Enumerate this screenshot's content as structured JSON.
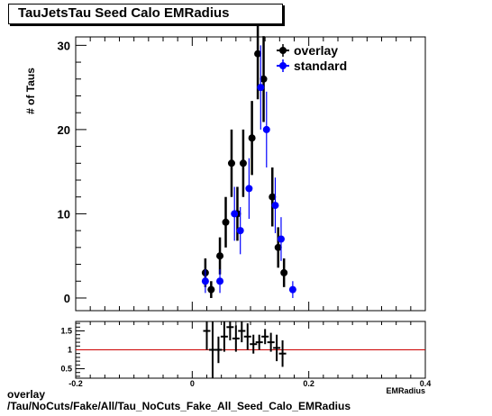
{
  "chart_data": [
    {
      "type": "scatter",
      "title": "TauJetsTau Seed Calo EMRadius",
      "ylabel": "# of Taus",
      "xlim": [
        -0.2,
        0.4
      ],
      "ylim": [
        -1.5,
        31
      ],
      "yticks": [
        0,
        10,
        20,
        30
      ],
      "grid": false,
      "legend_placement": "top-right",
      "series": [
        {
          "name": "overlay",
          "color": "#000000",
          "x": [
            0.0225,
            0.0325,
            0.0475,
            0.0575,
            0.0675,
            0.0775,
            0.0875,
            0.1025,
            0.1125,
            0.1225,
            0.1375,
            0.1475,
            0.1575
          ],
          "y": [
            3,
            1,
            5,
            9,
            16,
            10,
            16,
            19,
            29,
            26,
            12,
            6,
            3
          ],
          "yerr": [
            1.7,
            1.0,
            2.2,
            3.0,
            4.0,
            3.2,
            4.0,
            4.4,
            5.4,
            5.1,
            3.5,
            2.4,
            1.7
          ]
        },
        {
          "name": "standard",
          "color": "#0000ff",
          "x": [
            0.0225,
            0.0475,
            0.0725,
            0.0825,
            0.0975,
            0.1175,
            0.1275,
            0.1425,
            0.1525,
            0.1725
          ],
          "y": [
            2,
            2,
            10,
            8,
            13,
            25,
            20,
            11,
            7,
            1
          ],
          "yerr": [
            1.4,
            1.4,
            3.2,
            2.8,
            3.6,
            5.0,
            4.5,
            3.3,
            2.6,
            1.0
          ]
        }
      ]
    },
    {
      "type": "scatter",
      "title": "",
      "xlabel": "EMRadius",
      "xlim": [
        -0.2,
        0.4
      ],
      "ylim": [
        0.25,
        1.75
      ],
      "yticks": [
        0.5,
        1,
        1.5
      ],
      "xticks": [
        -0.2,
        0,
        0.2,
        0.4
      ],
      "reference_line": {
        "y": 1,
        "color": "#cc0000"
      },
      "series": [
        {
          "name": "",
          "color": "#000000",
          "x": [
            0.025,
            0.035,
            0.045,
            0.055,
            0.065,
            0.075,
            0.085,
            0.095,
            0.105,
            0.115,
            0.125,
            0.135,
            0.145,
            0.155
          ],
          "y": [
            1.5,
            1.0,
            1.0,
            1.35,
            1.6,
            1.3,
            1.5,
            1.35,
            1.15,
            1.2,
            1.35,
            1.2,
            1.05,
            0.9
          ],
          "yerr": [
            0.5,
            0.75,
            0.35,
            0.4,
            0.35,
            0.35,
            0.3,
            0.35,
            0.25,
            0.2,
            0.2,
            0.25,
            0.35,
            0.35
          ]
        }
      ]
    }
  ],
  "footer": {
    "line1": "overlay",
    "line2": "/Tau/NoCuts/Fake/All/Tau_NoCuts_Fake_All_Seed_Calo_EMRadius"
  }
}
